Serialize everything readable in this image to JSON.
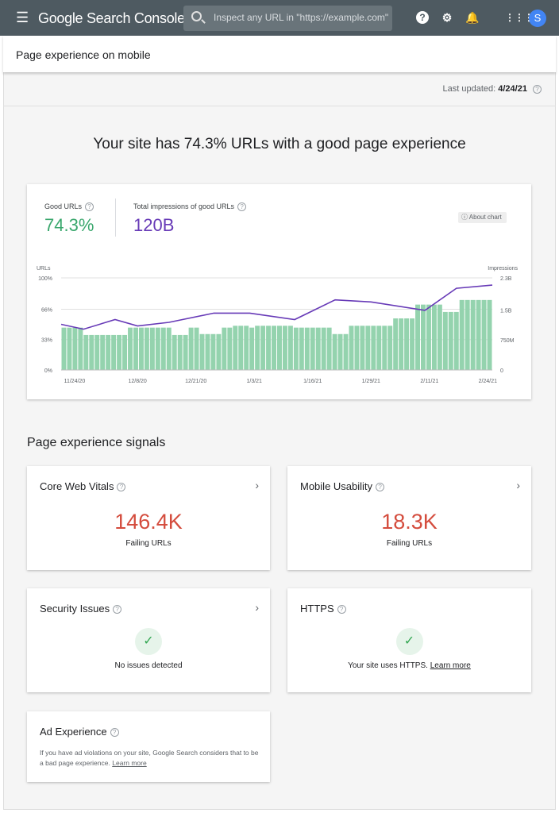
{
  "header": {
    "app_title": "Google Search Console",
    "search_placeholder": "Inspect any URL in \"https://example.com\"",
    "avatar_letter": "S",
    "icons": [
      "menu-icon",
      "search-icon",
      "help-icon",
      "user-settings-icon",
      "bell-icon",
      "apps-grid-icon"
    ]
  },
  "page": {
    "title": "Page experience on mobile",
    "last_updated_label": "Last updated:",
    "last_updated_value": "4/24/21",
    "headline": "Your site has 74.3% URLs with a good page experience"
  },
  "summary": {
    "good_urls_label": "Good URLs",
    "good_urls_value": "74.3%",
    "impressions_label": "Total impressions of good URLs",
    "impressions_value": "120B",
    "about_chart": "About chart",
    "colors": {
      "good": "#3aa76d",
      "impressions": "#673ab7",
      "bars": "#94d3ae",
      "failing": "#d44c3d"
    }
  },
  "chart_data": {
    "type": "bar+line",
    "left_axis_label": "URLs",
    "right_axis_label": "Impressions",
    "left_ticks": [
      "0%",
      "33%",
      "66%",
      "100%"
    ],
    "left_tick_values": [
      0,
      33,
      66,
      100
    ],
    "ylim_left": [
      0,
      100
    ],
    "right_ticks": [
      "0",
      "750M",
      "1.5B",
      "2.3B"
    ],
    "right_tick_values": [
      0,
      0.75,
      1.5,
      2.3
    ],
    "ylim_right": [
      0,
      2.3
    ],
    "x_ticks": [
      "11/24/20",
      "12/8/20",
      "12/21/20",
      "1/3/21",
      "1/16/21",
      "1/29/21",
      "2/11/21",
      "2/24/21"
    ],
    "x_range": [
      "11/21/20",
      "2/25/21"
    ],
    "grid": true,
    "bar_series": {
      "name": "URLs",
      "unit": "%",
      "values": [
        46,
        46,
        46,
        46,
        38,
        38,
        38,
        38,
        38,
        38,
        38,
        38,
        46,
        46,
        46,
        46,
        46,
        46,
        46,
        46,
        38,
        38,
        38,
        46,
        46,
        39,
        39,
        39,
        39,
        46,
        46,
        48,
        48,
        48,
        46,
        48,
        48,
        48,
        48,
        48,
        48,
        48,
        46,
        46,
        46,
        46,
        46,
        46,
        46,
        39,
        39,
        39,
        48,
        48,
        48,
        48,
        48,
        48,
        48,
        48,
        56,
        56,
        56,
        56,
        71,
        71,
        71,
        71,
        71,
        63,
        63,
        63,
        76,
        76,
        76,
        76,
        76,
        76
      ]
    },
    "line_series": {
      "name": "Impressions",
      "unit": "B",
      "points": [
        [
          "11/21/20",
          1.14
        ],
        [
          "11/26/20",
          1.02
        ],
        [
          "12/3/20",
          1.26
        ],
        [
          "12/8/20",
          1.1
        ],
        [
          "12/15/20",
          1.19
        ],
        [
          "12/25/20",
          1.42
        ],
        [
          "1/2/21",
          1.42
        ],
        [
          "1/12/21",
          1.26
        ],
        [
          "1/21/21",
          1.75
        ],
        [
          "1/29/21",
          1.7
        ],
        [
          "2/10/21",
          1.49
        ],
        [
          "2/17/21",
          2.04
        ],
        [
          "2/25/21",
          2.12
        ]
      ]
    }
  },
  "signals": {
    "title": "Page experience signals",
    "core_web_vitals": {
      "title": "Core Web Vitals",
      "value": "146.4K",
      "sub": "Failing URLs"
    },
    "mobile_usability": {
      "title": "Mobile Usability",
      "value": "18.3K",
      "sub": "Failing URLs"
    },
    "security": {
      "title": "Security Issues",
      "message": "No issues detected"
    },
    "https": {
      "title": "HTTPS",
      "message": "Your site uses HTTPS.",
      "link": "Learn more"
    },
    "ad": {
      "title": "Ad Experience",
      "message": "If you have ad violations on your site, Google Search considers that to be a bad page experience.",
      "link": "Learn more"
    }
  }
}
